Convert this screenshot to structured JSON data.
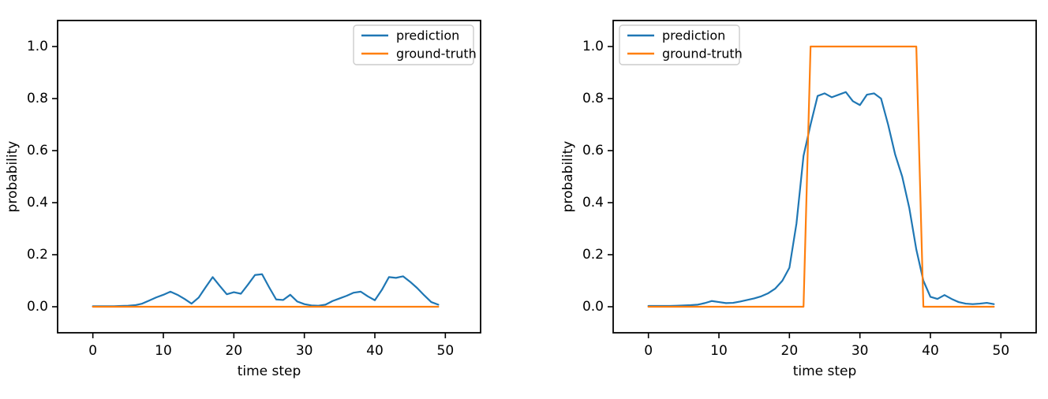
{
  "figure": {
    "background": "#ffffff"
  },
  "colors": {
    "prediction": "#1f77b4",
    "ground_truth": "#ff7f0e",
    "axis": "#000000",
    "text": "#000000",
    "legend_border": "#cccccc",
    "legend_fill": "#ffffff"
  },
  "chart_data": [
    {
      "type": "line",
      "panel": "left",
      "title": "",
      "xlabel": "time step",
      "ylabel": "probability",
      "xlim": [
        -5,
        55
      ],
      "ylim": [
        -0.1,
        1.1
      ],
      "xticks": [
        0,
        10,
        20,
        30,
        40,
        50
      ],
      "xtick_labels": [
        "0",
        "10",
        "20",
        "30",
        "40",
        "50"
      ],
      "yticks": [
        0.0,
        0.2,
        0.4,
        0.6,
        0.8,
        1.0
      ],
      "ytick_labels": [
        "0.0",
        "0.2",
        "0.4",
        "0.6",
        "0.8",
        "1.0"
      ],
      "grid": false,
      "legend": {
        "position": "upper-right"
      },
      "x_start": 0,
      "x_step": 1,
      "series": [
        {
          "name": "prediction",
          "color": "#1f77b4",
          "values": [
            0.002,
            0.002,
            0.002,
            0.002,
            0.003,
            0.004,
            0.006,
            0.012,
            0.024,
            0.036,
            0.046,
            0.058,
            0.046,
            0.03,
            0.012,
            0.035,
            0.075,
            0.114,
            0.08,
            0.048,
            0.056,
            0.05,
            0.085,
            0.122,
            0.125,
            0.075,
            0.028,
            0.026,
            0.046,
            0.02,
            0.01,
            0.005,
            0.004,
            0.008,
            0.022,
            0.032,
            0.042,
            0.054,
            0.058,
            0.04,
            0.025,
            0.065,
            0.114,
            0.111,
            0.117,
            0.096,
            0.072,
            0.044,
            0.018,
            0.008
          ]
        },
        {
          "name": "ground-truth",
          "color": "#ff7f0e",
          "values": [
            0,
            0,
            0,
            0,
            0,
            0,
            0,
            0,
            0,
            0,
            0,
            0,
            0,
            0,
            0,
            0,
            0,
            0,
            0,
            0,
            0,
            0,
            0,
            0,
            0,
            0,
            0,
            0,
            0,
            0,
            0,
            0,
            0,
            0,
            0,
            0,
            0,
            0,
            0,
            0,
            0,
            0,
            0,
            0,
            0,
            0,
            0,
            0,
            0,
            0
          ]
        }
      ]
    },
    {
      "type": "line",
      "panel": "right",
      "title": "",
      "xlabel": "time step",
      "ylabel": "probability",
      "xlim": [
        -5,
        55
      ],
      "ylim": [
        -0.1,
        1.1
      ],
      "xticks": [
        0,
        10,
        20,
        30,
        40,
        50
      ],
      "xtick_labels": [
        "0",
        "10",
        "20",
        "30",
        "40",
        "50"
      ],
      "yticks": [
        0.0,
        0.2,
        0.4,
        0.6,
        0.8,
        1.0
      ],
      "ytick_labels": [
        "0.0",
        "0.2",
        "0.4",
        "0.6",
        "0.8",
        "1.0"
      ],
      "grid": false,
      "legend": {
        "position": "upper-left"
      },
      "x_start": 0,
      "x_step": 1,
      "series": [
        {
          "name": "prediction",
          "color": "#1f77b4",
          "values": [
            0.003,
            0.003,
            0.003,
            0.003,
            0.004,
            0.005,
            0.006,
            0.008,
            0.014,
            0.022,
            0.018,
            0.014,
            0.015,
            0.02,
            0.026,
            0.032,
            0.04,
            0.052,
            0.07,
            0.1,
            0.15,
            0.32,
            0.58,
            0.7,
            0.81,
            0.82,
            0.805,
            0.815,
            0.825,
            0.79,
            0.775,
            0.815,
            0.82,
            0.8,
            0.7,
            0.585,
            0.5,
            0.38,
            0.22,
            0.1,
            0.038,
            0.03,
            0.045,
            0.03,
            0.018,
            0.012,
            0.01,
            0.012,
            0.015,
            0.01
          ]
        },
        {
          "name": "ground-truth",
          "color": "#ff7f0e",
          "values": [
            0,
            0,
            0,
            0,
            0,
            0,
            0,
            0,
            0,
            0,
            0,
            0,
            0,
            0,
            0,
            0,
            0,
            0,
            0,
            0,
            0,
            0,
            0,
            1,
            1,
            1,
            1,
            1,
            1,
            1,
            1,
            1,
            1,
            1,
            1,
            1,
            1,
            1,
            1,
            0,
            0,
            0,
            0,
            0,
            0,
            0,
            0,
            0,
            0,
            0
          ]
        }
      ]
    }
  ]
}
